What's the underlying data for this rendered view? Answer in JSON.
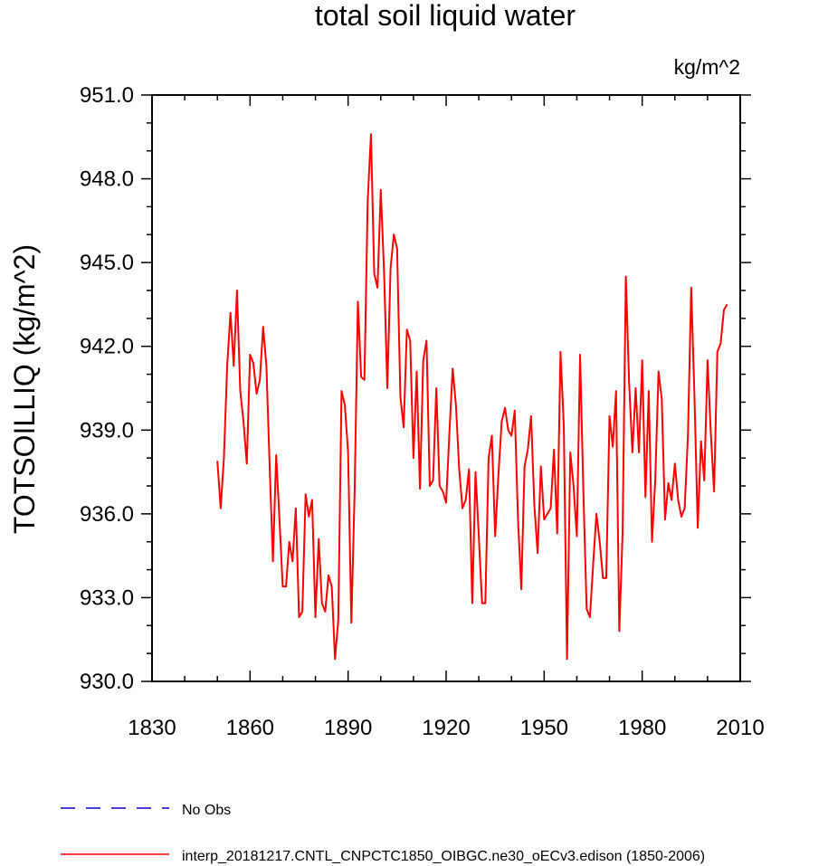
{
  "chart_data": {
    "type": "line",
    "title": "total soil liquid water",
    "units_label": "kg/m^2",
    "ylabel": "TOTSOILLIQ  (kg/m^2)",
    "xlabel": "",
    "xlim": [
      1830,
      2010
    ],
    "ylim": [
      930.0,
      951.0
    ],
    "x_ticks": [
      1830,
      1860,
      1890,
      1920,
      1950,
      1980,
      2010
    ],
    "x_tick_labels": [
      "1830",
      "1860",
      "1890",
      "1920",
      "1950",
      "1980",
      "2010"
    ],
    "y_ticks": [
      930.0,
      933.0,
      936.0,
      939.0,
      942.0,
      945.0,
      948.0,
      951.0
    ],
    "y_tick_labels": [
      "930.0",
      "933.0",
      "936.0",
      "939.0",
      "942.0",
      "945.0",
      "948.0",
      "951.0"
    ],
    "grid": false,
    "legend_position": "bottom-left",
    "series": [
      {
        "name": "No Obs",
        "color": "#0000cc",
        "dash": "dashed",
        "x": [],
        "y": []
      },
      {
        "name": "interp_20181217.CNTL_CNPCTC1850_OIBGC.ne30_oECv3.edison (1850-2006)",
        "color": "#ff0000",
        "dash": "solid",
        "x": [
          1850,
          1851,
          1852,
          1853,
          1854,
          1855,
          1856,
          1857,
          1858,
          1859,
          1860,
          1861,
          1862,
          1863,
          1864,
          1865,
          1866,
          1867,
          1868,
          1869,
          1870,
          1871,
          1872,
          1873,
          1874,
          1875,
          1876,
          1877,
          1878,
          1879,
          1880,
          1881,
          1882,
          1883,
          1884,
          1885,
          1886,
          1887,
          1888,
          1889,
          1890,
          1891,
          1892,
          1893,
          1894,
          1895,
          1896,
          1897,
          1898,
          1899,
          1900,
          1901,
          1902,
          1903,
          1904,
          1905,
          1906,
          1907,
          1908,
          1909,
          1910,
          1911,
          1912,
          1913,
          1914,
          1915,
          1916,
          1917,
          1918,
          1919,
          1920,
          1921,
          1922,
          1923,
          1924,
          1925,
          1926,
          1927,
          1928,
          1929,
          1930,
          1931,
          1932,
          1933,
          1934,
          1935,
          1936,
          1937,
          1938,
          1939,
          1940,
          1941,
          1942,
          1943,
          1944,
          1945,
          1946,
          1947,
          1948,
          1949,
          1950,
          1951,
          1952,
          1953,
          1954,
          1955,
          1956,
          1957,
          1958,
          1959,
          1960,
          1961,
          1962,
          1963,
          1964,
          1965,
          1966,
          1967,
          1968,
          1969,
          1970,
          1971,
          1972,
          1973,
          1974,
          1975,
          1976,
          1977,
          1978,
          1979,
          1980,
          1981,
          1982,
          1983,
          1984,
          1985,
          1986,
          1987,
          1988,
          1989,
          1990,
          1991,
          1992,
          1993,
          1994,
          1995,
          1996,
          1997,
          1998,
          1999,
          2000,
          2001,
          2002,
          2003,
          2004,
          2005,
          2006
        ],
        "y": [
          937.9,
          936.2,
          938.0,
          941.3,
          943.2,
          941.3,
          944.0,
          940.4,
          939.3,
          937.8,
          941.7,
          941.4,
          940.3,
          940.8,
          942.7,
          941.3,
          937.7,
          934.3,
          938.1,
          935.8,
          933.4,
          933.4,
          935.0,
          934.3,
          936.2,
          932.3,
          932.5,
          936.7,
          935.9,
          936.5,
          932.3,
          935.1,
          932.8,
          932.5,
          933.8,
          933.4,
          930.8,
          932.2,
          940.4,
          939.9,
          938.2,
          932.1,
          936.8,
          943.6,
          940.9,
          940.8,
          947.2,
          949.6,
          944.6,
          944.1,
          947.6,
          944.7,
          940.5,
          944.8,
          946.0,
          945.5,
          940.2,
          939.1,
          942.6,
          942.2,
          938.0,
          941.1,
          936.9,
          941.5,
          942.2,
          937.0,
          937.2,
          940.5,
          937.0,
          936.8,
          936.4,
          938.9,
          941.2,
          939.9,
          937.6,
          936.2,
          936.5,
          937.6,
          932.8,
          937.5,
          935.2,
          932.8,
          932.8,
          938.0,
          938.8,
          935.2,
          937.4,
          939.3,
          939.8,
          939.0,
          938.8,
          939.7,
          935.8,
          933.3,
          937.7,
          938.3,
          939.5,
          936.3,
          934.6,
          937.7,
          935.8,
          936.0,
          936.2,
          938.3,
          935.3,
          941.8,
          939.2,
          930.8,
          938.2,
          937.0,
          935.2,
          941.7,
          936.8,
          932.6,
          932.3,
          934.2,
          936.0,
          935.0,
          933.7,
          933.7,
          939.5,
          938.4,
          940.4,
          931.8,
          935.3,
          944.5,
          940.7,
          938.2,
          940.5,
          938.2,
          941.5,
          936.6,
          940.4,
          935.0,
          937.2,
          941.1,
          940.1,
          935.8,
          937.1,
          936.5,
          937.8,
          936.5,
          935.9,
          936.2,
          938.8,
          944.1,
          940.2,
          935.5,
          938.6,
          937.2,
          941.5,
          938.9,
          936.8,
          941.8,
          942.1,
          943.3,
          943.5
        ]
      }
    ]
  }
}
